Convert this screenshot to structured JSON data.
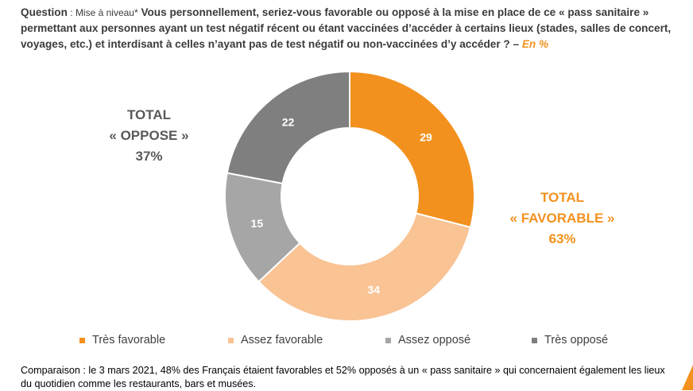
{
  "question": {
    "label": "Question",
    "separator": " : ",
    "sub": "Mise à niveau*",
    "text": "Vous personnellement, seriez-vous favorable ou opposé à la mise en place de ce « pass sanitaire » permettant aux personnes ayant un test négatif récent ou étant vaccinées d’accéder à certains lieux (stades, salles de concert, voyages, etc.) et interdisant à celles n’ayant pas de test négatif ou non-vaccinées d’y accéder ? –",
    "unit": "En %"
  },
  "totals": {
    "oppose": {
      "line1": "TOTAL",
      "line2": "« OPPOSE »",
      "value": "37%"
    },
    "favorable": {
      "line1": "TOTAL",
      "line2": "« FAVORABLE »",
      "value": "63%"
    }
  },
  "colors": {
    "tres_favorable": "#F3911E",
    "assez_favorable": "#F9C394",
    "assez_oppose": "#A6A6A6",
    "tres_oppose": "#7F7F7F",
    "accent": "#F3911E"
  },
  "chart_data": {
    "type": "pie",
    "variant": "donut",
    "categories": [
      "Très favorable",
      "Assez favorable",
      "Assez opposé",
      "Très opposé"
    ],
    "values": [
      29,
      34,
      15,
      22
    ],
    "unit": "%",
    "legend_position": "bottom"
  },
  "legend": {
    "items": [
      {
        "label": "Très favorable",
        "color": "#F3911E"
      },
      {
        "label": "Assez favorable",
        "color": "#F9C394"
      },
      {
        "label": "Assez opposé",
        "color": "#A6A6A6"
      },
      {
        "label": "Très opposé",
        "color": "#7F7F7F"
      }
    ]
  },
  "note": {
    "text": "Comparaison : le 3 mars 2021, 48% des Français étaient favorables et 52% opposés à un « pass sanitaire » qui concernaient également les lieux du quotidien comme les restaurants, bars et musées."
  }
}
